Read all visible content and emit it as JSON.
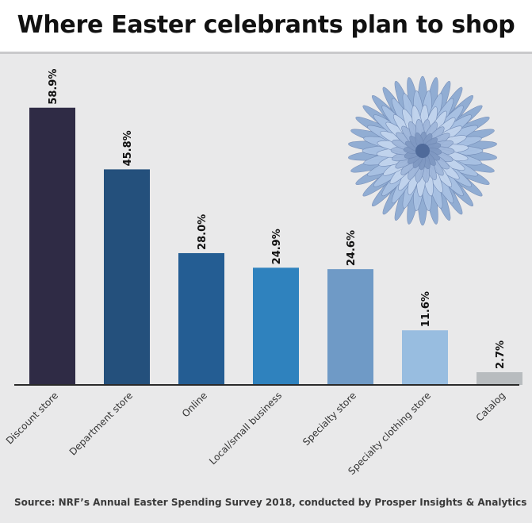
{
  "title": "Where Easter celebrants plan to shop",
  "source": "Source: NRF’s Annual Easter Spending Survey 2018, conducted by Prosper Insights & Analytics",
  "decoration": {
    "icon": "blue-chrysanthemum-flower"
  },
  "chart_data": {
    "type": "bar",
    "title": "Where Easter celebrants plan to shop",
    "xlabel": "",
    "ylabel": "",
    "categories": [
      "Discount store",
      "Department store",
      "Online",
      "Local/small business",
      "Specialty store",
      "Specialty clothing store",
      "Catalog"
    ],
    "values": [
      58.9,
      45.8,
      28.0,
      24.9,
      24.6,
      11.6,
      2.7
    ],
    "value_labels": [
      "58.9%",
      "45.8%",
      "28.0%",
      "24.9%",
      "24.6%",
      "11.6%",
      "2.7%"
    ],
    "colors": [
      "#2f2b45",
      "#24507c",
      "#245d93",
      "#2f82be",
      "#6f9ac6",
      "#98bde0",
      "#b8bcbf"
    ],
    "ylim": [
      0,
      60
    ],
    "grid": false,
    "legend": "none"
  }
}
